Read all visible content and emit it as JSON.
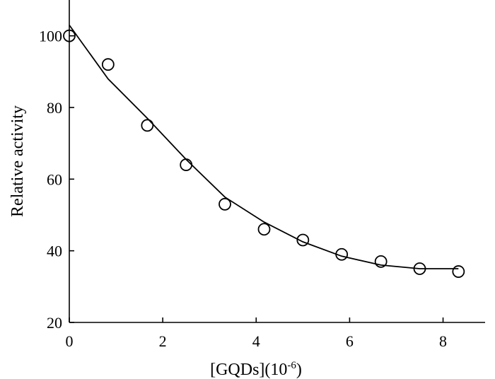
{
  "chart_data": {
    "type": "scatter",
    "xlabel": "[GQDs](10",
    "xlabel_superscript": "-6",
    "xlabel_suffix": ")",
    "ylabel": "Relative activity",
    "xlim": [
      0,
      8.9
    ],
    "ylim": [
      20,
      110
    ],
    "xticks": [
      0,
      2,
      4,
      6,
      8
    ],
    "yticks": [
      20,
      40,
      60,
      80,
      100
    ],
    "grid": false,
    "series": [
      {
        "kind": "markers",
        "marker": "open-circle",
        "x": [
          0,
          0.83,
          1.67,
          2.5,
          3.33,
          4.17,
          5.0,
          5.83,
          6.67,
          7.5,
          8.33
        ],
        "y": [
          100,
          92,
          75,
          64,
          53,
          46,
          43,
          39,
          37,
          35,
          34.2
        ]
      },
      {
        "kind": "line",
        "x": [
          0,
          0.83,
          1.67,
          2.5,
          3.33,
          4.17,
          5.0,
          5.83,
          6.67,
          7.5,
          8.33
        ],
        "y": [
          103,
          88,
          77,
          65.5,
          55,
          48,
          42.5,
          38.5,
          36,
          35,
          35
        ]
      }
    ]
  }
}
